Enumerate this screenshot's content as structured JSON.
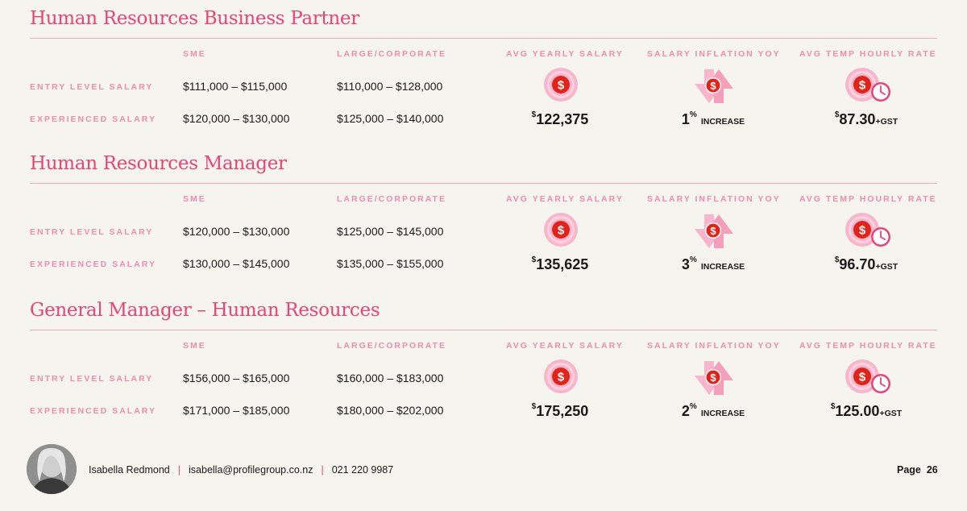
{
  "column_headers": {
    "sme": "SME",
    "large": "LARGE/CORPORATE",
    "avg_yearly": "AVG YEARLY SALARY",
    "inflation": "SALARY INFLATION YOY",
    "temp_rate": "AVG TEMP HOURLY RATE"
  },
  "row_labels": {
    "entry": "ENTRY LEVEL SALARY",
    "experienced": "EXPERIENCED SALARY"
  },
  "sections": [
    {
      "title": "Human Resources Business Partner",
      "entry_sme": "$111,000 – $115,000",
      "entry_large": "$110,000 – $128,000",
      "exp_sme": "$120,000 – $130,000",
      "exp_large": "$125,000 – $140,000",
      "avg_currency": "$",
      "avg_value": "122,375",
      "inflation_value": "1",
      "inflation_unit": "%",
      "inflation_label": "INCREASE",
      "temp_currency": "$",
      "temp_value": "87.30",
      "temp_suffix": "+GST"
    },
    {
      "title": "Human Resources Manager",
      "entry_sme": "$120,000 – $130,000",
      "entry_large": "$125,000 – $145,000",
      "exp_sme": "$130,000 – $145,000",
      "exp_large": "$135,000 – $155,000",
      "avg_currency": "$",
      "avg_value": "135,625",
      "inflation_value": "3",
      "inflation_unit": "%",
      "inflation_label": "INCREASE",
      "temp_currency": "$",
      "temp_value": "96.70",
      "temp_suffix": "+GST"
    },
    {
      "title": "General Manager – Human Resources",
      "entry_sme": "$156,000 – $165,000",
      "entry_large": "$160,000 – $183,000",
      "exp_sme": "$171,000 – $185,000",
      "exp_large": "$180,000 – $202,000",
      "avg_currency": "$",
      "avg_value": "175,250",
      "inflation_value": "2",
      "inflation_unit": "%",
      "inflation_label": "INCREASE",
      "temp_currency": "$",
      "temp_value": "125.00",
      "temp_suffix": "+GST"
    }
  ],
  "footer": {
    "name": "Isabella Redmond",
    "separator": "|",
    "email": "isabella@profilegroup.co.nz",
    "phone": "021 220 9987",
    "page_label": "Page",
    "page_number": "26"
  },
  "icons": {
    "dollar_coin": "dollar-coin-icon",
    "inflation_arrows": "up-down-arrows-dollar-icon",
    "dollar_clock": "dollar-clock-icon",
    "dollar_symbol": "$"
  },
  "colors": {
    "accent_pink": "#e8447a",
    "label_pink": "#f08cb0",
    "icon_light_pink": "#f7b6cb",
    "icon_red": "#e2231a",
    "background": "#f5f4ef"
  }
}
